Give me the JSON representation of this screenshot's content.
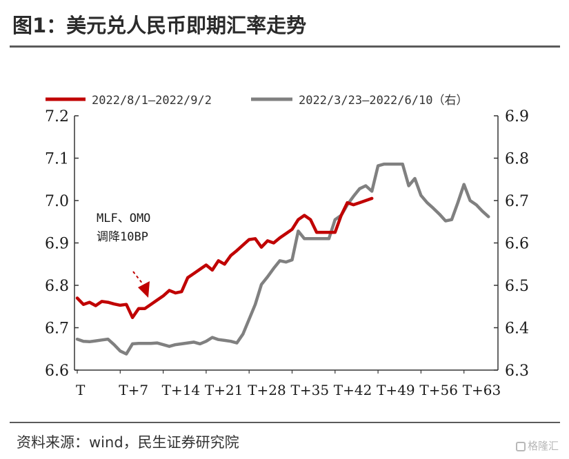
{
  "header": {
    "title": "图1：美元兑人民币即期汇率走势"
  },
  "footer": {
    "source": "资料来源：wind，民生证券研究院",
    "watermark": "格隆汇"
  },
  "chart_data": {
    "type": "line",
    "x": {
      "tick_labels": [
        "T",
        "T+7",
        "T+14",
        "T+21",
        "T+28",
        "T+35",
        "T+42",
        "T+49",
        "T+56",
        "T+63"
      ],
      "range": [
        0,
        67
      ]
    },
    "y_left": {
      "range": [
        6.6,
        7.2
      ],
      "ticks": [
        "6.6",
        "6.7",
        "6.8",
        "6.9",
        "7.0",
        "7.1",
        "7.2"
      ]
    },
    "y_right": {
      "range": [
        6.3,
        6.9
      ],
      "ticks": [
        "6.3",
        "6.4",
        "6.5",
        "6.6",
        "6.7",
        "6.8",
        "6.9"
      ]
    },
    "grid": false,
    "legend_position": "top",
    "series": [
      {
        "name": "2022/8/1—2022/9/2",
        "axis": "left",
        "color": "#c00000",
        "x": [
          0,
          1,
          2,
          3,
          4,
          5,
          6,
          7,
          8,
          9,
          10,
          11,
          12,
          13,
          14,
          15,
          16,
          17,
          18,
          19,
          20,
          21,
          22,
          23,
          24,
          25,
          26,
          27,
          28,
          29,
          30,
          31,
          32,
          33,
          34,
          35,
          36,
          37,
          38,
          39,
          40,
          41,
          42,
          43,
          44,
          45,
          46,
          47,
          48
        ],
        "values": [
          6.77,
          6.755,
          6.76,
          6.752,
          6.762,
          6.76,
          6.756,
          6.753,
          6.755,
          6.724,
          6.745,
          6.745,
          6.755,
          6.765,
          6.775,
          6.788,
          6.782,
          6.785,
          6.818,
          6.828,
          6.838,
          6.848,
          6.836,
          6.858,
          6.85,
          6.87,
          6.882,
          6.895,
          6.908,
          6.91,
          6.89,
          6.905,
          6.9,
          6.912,
          6.922,
          6.932,
          6.955,
          6.965,
          6.955,
          6.925,
          6.925,
          6.925,
          6.925,
          6.965,
          6.995,
          6.99,
          6.995,
          7.0,
          7.005
        ]
      },
      {
        "name": "2022/3/23—2022/6/10（右）",
        "axis": "right",
        "color": "#808080",
        "x": [
          0,
          1,
          2,
          3,
          4,
          5,
          6,
          7,
          8,
          9,
          10,
          11,
          12,
          13,
          14,
          15,
          16,
          17,
          18,
          19,
          20,
          21,
          22,
          23,
          24,
          25,
          26,
          27,
          28,
          29,
          30,
          31,
          32,
          33,
          34,
          35,
          36,
          37,
          38,
          39,
          40,
          41,
          42,
          43,
          44,
          45,
          46,
          47,
          48,
          49,
          50,
          51,
          52,
          53,
          54,
          55,
          56,
          57,
          58,
          59,
          60,
          61,
          62,
          63,
          64,
          65,
          66,
          67
        ],
        "values": [
          6.373,
          6.368,
          6.367,
          6.369,
          6.371,
          6.373,
          6.36,
          6.345,
          6.338,
          6.362,
          6.363,
          6.363,
          6.363,
          6.364,
          6.36,
          6.356,
          6.36,
          6.362,
          6.364,
          6.366,
          6.362,
          6.368,
          6.377,
          6.372,
          6.37,
          6.368,
          6.364,
          6.385,
          6.42,
          6.455,
          6.502,
          6.52,
          6.54,
          6.558,
          6.555,
          6.56,
          6.628,
          6.61,
          6.61,
          6.61,
          6.61,
          6.61,
          6.655,
          6.665,
          6.69,
          6.71,
          6.728,
          6.735,
          6.722,
          6.782,
          6.786,
          6.786,
          6.786,
          6.786,
          6.735,
          6.752,
          6.712,
          6.695,
          6.682,
          6.668,
          6.652,
          6.655,
          6.695,
          6.738,
          6.7,
          6.69,
          6.675,
          6.662
        ]
      }
    ],
    "annotations": [
      {
        "lines": [
          "MLF、OMO",
          "调降10BP"
        ],
        "points_to_x": 11
      }
    ]
  }
}
